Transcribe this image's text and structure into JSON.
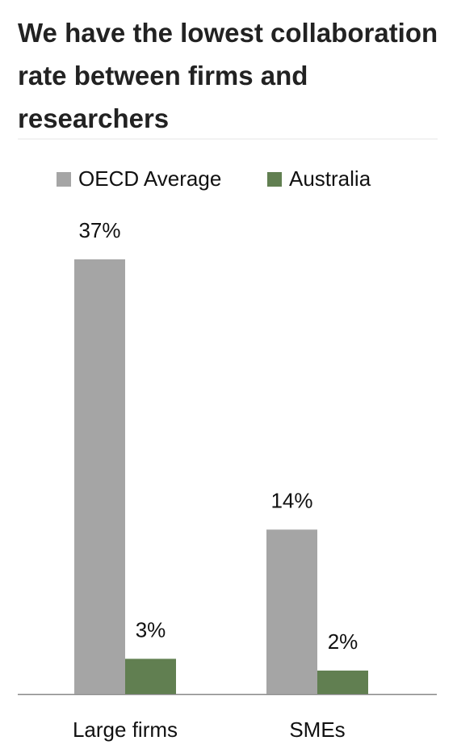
{
  "chart_data": {
    "type": "bar",
    "title": "We have the lowest collaboration rate between firms and researchers",
    "categories": [
      "Large firms",
      "SMEs"
    ],
    "series": [
      {
        "name": "OECD Average",
        "color": "#a5a5a5",
        "values": [
          37,
          14
        ],
        "value_labels": [
          "37%",
          "14%"
        ]
      },
      {
        "name": "Australia",
        "color": "#617f51",
        "values": [
          3,
          2
        ],
        "value_labels": [
          "3%",
          "2%"
        ]
      }
    ],
    "legend": "top"
  }
}
